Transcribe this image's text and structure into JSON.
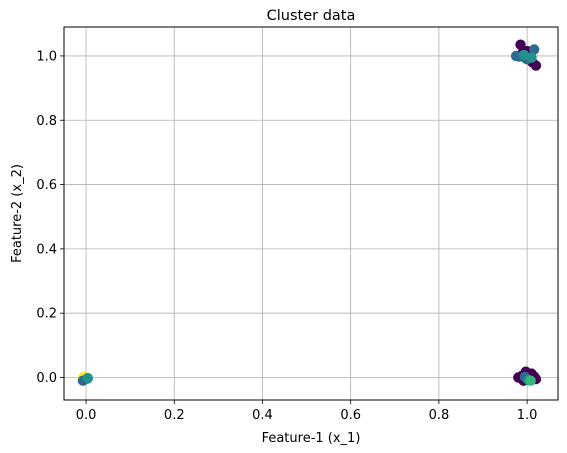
{
  "chart_data": {
    "type": "scatter",
    "title": "Cluster data",
    "xlabel": "Feature-1 (x_1)",
    "ylabel": "Feature-2 (x_2)",
    "xlim": [
      -0.05,
      1.07
    ],
    "ylim": [
      -0.07,
      1.09
    ],
    "x_ticks": [
      "0.0",
      "0.2",
      "0.4",
      "0.6",
      "0.8",
      "1.0"
    ],
    "x_tick_values": [
      0.0,
      0.2,
      0.4,
      0.6,
      0.8,
      1.0
    ],
    "y_ticks": [
      "0.0",
      "0.2",
      "0.4",
      "0.6",
      "0.8",
      "1.0"
    ],
    "y_tick_values": [
      0.0,
      0.2,
      0.4,
      0.6,
      0.8,
      1.0
    ],
    "grid": true,
    "colors": {
      "purple": "#440154",
      "blue": "#31688e",
      "teal": "#21918c",
      "green": "#35b779",
      "yellow": "#fde725"
    },
    "points": [
      {
        "x": 0.995,
        "y": 1.003,
        "c": "teal"
      },
      {
        "x": 1.003,
        "y": 0.997,
        "c": "teal"
      },
      {
        "x": 0.997,
        "y": 0.992,
        "c": "green"
      },
      {
        "x": -0.008,
        "y": -0.003,
        "c": "yellow"
      },
      {
        "x": -0.005,
        "y": 0.002,
        "c": "yellow"
      },
      {
        "x": 0.003,
        "y": -0.004,
        "c": "green"
      },
      {
        "x": -0.007,
        "y": -0.01,
        "c": "blue"
      },
      {
        "x": 0.004,
        "y": -0.002,
        "c": "teal"
      },
      {
        "x": 0.985,
        "y": 1.035,
        "c": "purple"
      },
      {
        "x": 0.99,
        "y": 1.01,
        "c": "purple"
      },
      {
        "x": 1.0,
        "y": 1.015,
        "c": "purple"
      },
      {
        "x": 1.008,
        "y": 1.005,
        "c": "purple"
      },
      {
        "x": 1.02,
        "y": 0.97,
        "c": "purple"
      },
      {
        "x": 1.012,
        "y": 0.98,
        "c": "purple"
      },
      {
        "x": 0.997,
        "y": 0.995,
        "c": "purple"
      },
      {
        "x": 0.975,
        "y": 1.0,
        "c": "blue"
      },
      {
        "x": 0.982,
        "y": 0.998,
        "c": "blue"
      },
      {
        "x": 1.016,
        "y": 1.02,
        "c": "blue"
      },
      {
        "x": 1.0,
        "y": 0.99,
        "c": "blue"
      },
      {
        "x": 0.993,
        "y": 1.003,
        "c": "teal"
      },
      {
        "x": 1.01,
        "y": 0.995,
        "c": "teal"
      },
      {
        "x": 0.988,
        "y": 0.005,
        "c": "purple"
      },
      {
        "x": 0.997,
        "y": 0.018,
        "c": "purple"
      },
      {
        "x": 1.006,
        "y": 0.01,
        "c": "purple"
      },
      {
        "x": 1.016,
        "y": 0.003,
        "c": "purple"
      },
      {
        "x": 1.02,
        "y": -0.005,
        "c": "purple"
      },
      {
        "x": 0.992,
        "y": -0.01,
        "c": "purple"
      },
      {
        "x": 0.999,
        "y": -0.003,
        "c": "purple"
      },
      {
        "x": 1.01,
        "y": 0.012,
        "c": "purple"
      },
      {
        "x": 0.98,
        "y": 0.0,
        "c": "purple"
      },
      {
        "x": 0.995,
        "y": 0.002,
        "c": "blue"
      },
      {
        "x": 1.003,
        "y": -0.008,
        "c": "teal"
      },
      {
        "x": 1.008,
        "y": -0.01,
        "c": "green"
      }
    ]
  }
}
